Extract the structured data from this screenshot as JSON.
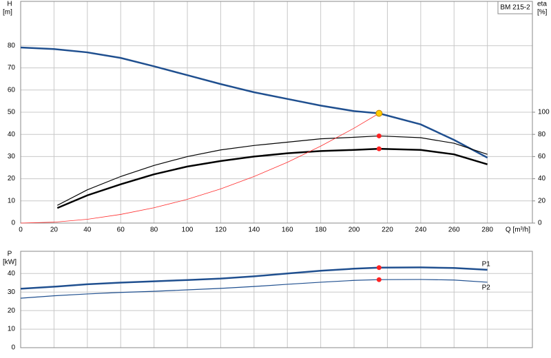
{
  "chart_data": [
    {
      "type": "line",
      "title": "BM 215-2",
      "y_label": "H",
      "y_unit": "[m]",
      "y2_label": "eta",
      "y2_unit": "[%]",
      "x_label": "Q [m³/h]",
      "xlim": [
        0,
        307
      ],
      "xticks": [
        0,
        20,
        40,
        60,
        80,
        100,
        120,
        140,
        160,
        180,
        200,
        220,
        240,
        260,
        280
      ],
      "show_xtick_labels": true,
      "ylim": [
        0,
        100
      ],
      "yticks": [
        0,
        10,
        20,
        30,
        40,
        50,
        60,
        70,
        80
      ],
      "y2lim": [
        0,
        200
      ],
      "y2ticks": [
        0,
        20,
        40,
        60,
        80,
        100
      ],
      "grid": true,
      "series": [
        {
          "color": "#1f4f8f",
          "width": 2.5,
          "x": [
            0,
            20,
            40,
            60,
            80,
            100,
            120,
            140,
            160,
            180,
            200,
            215,
            240,
            260,
            280
          ],
          "values": [
            79.2,
            78.5,
            77,
            74.5,
            70.7,
            66.7,
            62.7,
            59,
            56,
            53,
            50.5,
            49.5,
            44.5,
            37.5,
            29.5
          ]
        },
        {
          "color": "#000000",
          "width": 1.2,
          "axis": "y2",
          "x": [
            22,
            40,
            60,
            80,
            100,
            120,
            140,
            160,
            180,
            200,
            215,
            240,
            260,
            280
          ],
          "values": [
            16,
            30,
            42,
            52,
            60,
            66,
            70,
            73,
            76,
            77.4,
            78.6,
            77,
            72,
            62
          ]
        },
        {
          "color": "#000000",
          "width": 2.5,
          "axis": "y2",
          "x": [
            22,
            40,
            60,
            80,
            100,
            120,
            140,
            160,
            180,
            200,
            215,
            240,
            260,
            280
          ],
          "values": [
            13.6,
            25,
            35,
            44,
            51,
            56,
            60,
            63,
            65,
            66,
            67,
            66,
            62,
            53
          ]
        },
        {
          "color": "#ff2a2a",
          "width": 0.8,
          "x": [
            0,
            20,
            40,
            60,
            80,
            100,
            120,
            140,
            160,
            180,
            200,
            215
          ],
          "values": [
            0,
            0.4,
            1.7,
            3.9,
            6.9,
            10.7,
            15.4,
            21,
            27.4,
            34.7,
            42.8,
            49.5
          ]
        }
      ],
      "markers": [
        {
          "x": 215,
          "y": 49.5,
          "color": "#ffcc00"
        },
        {
          "x": 215,
          "y": 78.6,
          "axis": "y2",
          "color": "#ff2222"
        },
        {
          "x": 215,
          "y": 67,
          "axis": "y2",
          "color": "#ff2222"
        }
      ]
    },
    {
      "type": "line",
      "y_label": "P",
      "y_unit": "[kW]",
      "xlim": [
        0,
        307
      ],
      "xticks": [
        0,
        20,
        40,
        60,
        80,
        100,
        120,
        140,
        160,
        180,
        200,
        220,
        240,
        260,
        280
      ],
      "show_xtick_labels": false,
      "ylim": [
        0,
        52
      ],
      "yticks": [
        0,
        10,
        20,
        30,
        40
      ],
      "grid": true,
      "series": [
        {
          "name": "P1",
          "color": "#1f4f8f",
          "width": 2.5,
          "x": [
            0,
            22,
            40,
            60,
            80,
            100,
            120,
            140,
            160,
            180,
            200,
            215,
            240,
            260,
            280
          ],
          "values": [
            31.8,
            33,
            34.2,
            35.1,
            35.8,
            36.5,
            37.3,
            38.5,
            40,
            41.5,
            42.6,
            43.2,
            43.3,
            43,
            42
          ]
        },
        {
          "name": "P2",
          "color": "#1f4f8f",
          "width": 1.2,
          "x": [
            0,
            20,
            40,
            60,
            80,
            100,
            120,
            140,
            160,
            180,
            200,
            215,
            240,
            260,
            280
          ],
          "values": [
            26.7,
            28,
            29,
            29.8,
            30.4,
            31.2,
            32,
            33,
            34.2,
            35.3,
            36.3,
            36.7,
            36.8,
            36.5,
            35.3
          ]
        }
      ],
      "markers": [
        {
          "x": 215,
          "y": 43.2,
          "color": "#ff2222"
        },
        {
          "x": 215,
          "y": 36.7,
          "color": "#ff2222"
        }
      ]
    }
  ]
}
